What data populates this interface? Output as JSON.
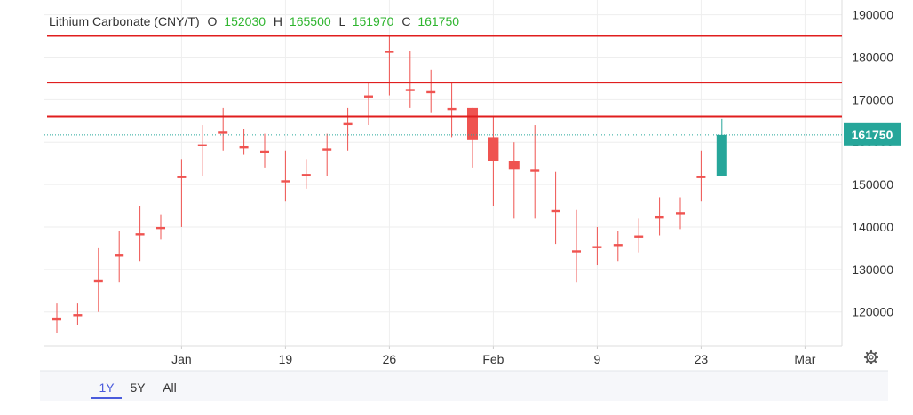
{
  "legend": {
    "symbol": "Lithium Carbonate (CNY/T)",
    "o_label": "O",
    "o_value": "152030",
    "h_label": "H",
    "h_value": "165500",
    "l_label": "L",
    "l_value": "151970",
    "c_label": "C",
    "c_value": "161750"
  },
  "last_price_label": "161750",
  "range_buttons": [
    {
      "label": "1Y",
      "selected": true
    },
    {
      "label": "5Y",
      "selected": false
    },
    {
      "label": "All",
      "selected": false
    }
  ],
  "settings_icon": "gear-icon",
  "colors": {
    "up": "#26a69a",
    "down": "#ef5350",
    "level_line": "#e01e1e",
    "legend_value": "#2fb52f",
    "range_selected": "#4a5bdc",
    "price_tag_bg": "#26a69a"
  },
  "chart_data": {
    "type": "candlestick",
    "ylim": [
      112000,
      192000
    ],
    "y_ticks": [
      120000,
      130000,
      140000,
      150000,
      160000,
      170000,
      180000,
      190000
    ],
    "y_tick_labels": [
      "120000",
      "130000",
      "140000",
      "150000",
      "160000",
      "170000",
      "180000",
      "190000"
    ],
    "x_ticks": [
      {
        "label": "Jan",
        "index": 6
      },
      {
        "label": "19",
        "index": 11
      },
      {
        "label": "26",
        "index": 16
      },
      {
        "label": "Feb",
        "index": 21
      },
      {
        "label": "9",
        "index": 26
      },
      {
        "label": "23",
        "index": 31
      },
      {
        "label": "Mar",
        "index": 36
      }
    ],
    "horizontal_levels": [
      185000,
      174000,
      166000
    ],
    "last_price": 161750,
    "candles": [
      {
        "o": 118500,
        "h": 122000,
        "l": 115000,
        "c": 118000
      },
      {
        "o": 119500,
        "h": 122000,
        "l": 117000,
        "c": 119000
      },
      {
        "o": 127500,
        "h": 135000,
        "l": 120000,
        "c": 127000
      },
      {
        "o": 133500,
        "h": 139000,
        "l": 127000,
        "c": 133000
      },
      {
        "o": 138500,
        "h": 145000,
        "l": 132000,
        "c": 138000
      },
      {
        "o": 140000,
        "h": 143000,
        "l": 137000,
        "c": 139500
      },
      {
        "o": 152000,
        "h": 156000,
        "l": 140000,
        "c": 151500
      },
      {
        "o": 159500,
        "h": 164000,
        "l": 152000,
        "c": 159000
      },
      {
        "o": 162500,
        "h": 168000,
        "l": 158000,
        "c": 162000
      },
      {
        "o": 159000,
        "h": 163000,
        "l": 157000,
        "c": 158500
      },
      {
        "o": 158000,
        "h": 162000,
        "l": 154000,
        "c": 157500
      },
      {
        "o": 151000,
        "h": 158000,
        "l": 146000,
        "c": 150500
      },
      {
        "o": 152500,
        "h": 156000,
        "l": 149000,
        "c": 152000
      },
      {
        "o": 158500,
        "h": 162000,
        "l": 152000,
        "c": 158000
      },
      {
        "o": 164500,
        "h": 168000,
        "l": 158000,
        "c": 164000
      },
      {
        "o": 171000,
        "h": 174000,
        "l": 164000,
        "c": 170500
      },
      {
        "o": 181500,
        "h": 185000,
        "l": 171000,
        "c": 181000
      },
      {
        "o": 172500,
        "h": 181500,
        "l": 168000,
        "c": 172000
      },
      {
        "o": 172000,
        "h": 177000,
        "l": 167000,
        "c": 171500
      },
      {
        "o": 168000,
        "h": 174000,
        "l": 161000,
        "c": 167500
      },
      {
        "o": 168000,
        "h": 168000,
        "l": 154000,
        "c": 160500
      },
      {
        "o": 161000,
        "h": 166000,
        "l": 145000,
        "c": 155500
      },
      {
        "o": 155500,
        "h": 160000,
        "l": 142000,
        "c": 153500
      },
      {
        "o": 153500,
        "h": 164000,
        "l": 142000,
        "c": 153000
      },
      {
        "o": 144000,
        "h": 153000,
        "l": 136000,
        "c": 143500
      },
      {
        "o": 134500,
        "h": 144000,
        "l": 127000,
        "c": 134000
      },
      {
        "o": 135500,
        "h": 140000,
        "l": 131000,
        "c": 135000
      },
      {
        "o": 136000,
        "h": 139000,
        "l": 132000,
        "c": 135500
      },
      {
        "o": 138000,
        "h": 142000,
        "l": 134000,
        "c": 137500
      },
      {
        "o": 142500,
        "h": 147000,
        "l": 138000,
        "c": 142000
      },
      {
        "o": 143500,
        "h": 147000,
        "l": 139500,
        "c": 143000
      },
      {
        "o": 152030,
        "h": 158000,
        "l": 146000,
        "c": 151500
      },
      {
        "o": 152030,
        "h": 165500,
        "l": 151970,
        "c": 161750
      }
    ]
  }
}
